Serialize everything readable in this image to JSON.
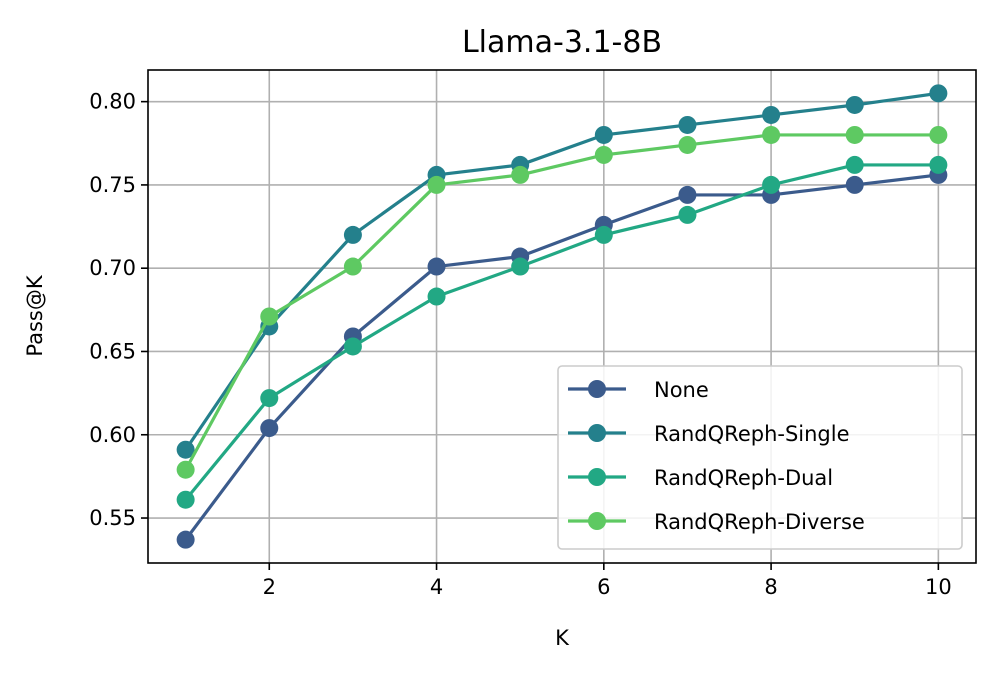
{
  "chart_data": {
    "type": "line",
    "title": "Llama-3.1-8B",
    "xlabel": "K",
    "ylabel": "Pass@K",
    "x": [
      1,
      2,
      3,
      4,
      5,
      6,
      7,
      8,
      9,
      10
    ],
    "xlim": [
      0.55,
      10.45
    ],
    "ylim": [
      0.523,
      0.819
    ],
    "xticks": [
      2,
      4,
      6,
      8,
      10
    ],
    "yticks": [
      0.55,
      0.6,
      0.65,
      0.7,
      0.75,
      0.8
    ],
    "ytick_labels": [
      "0.55",
      "0.60",
      "0.65",
      "0.70",
      "0.75",
      "0.80"
    ],
    "grid": true,
    "legend_position": "lower-right",
    "series": [
      {
        "name": "None",
        "color": "#3b5b8c",
        "values": [
          0.537,
          0.604,
          0.659,
          0.701,
          0.707,
          0.726,
          0.744,
          0.744,
          0.75,
          0.756
        ]
      },
      {
        "name": "RandQReph-Single",
        "color": "#24808c",
        "values": [
          0.591,
          0.665,
          0.72,
          0.756,
          0.762,
          0.78,
          0.786,
          0.792,
          0.798,
          0.805
        ]
      },
      {
        "name": "RandQReph-Dual",
        "color": "#22a884",
        "values": [
          0.561,
          0.622,
          0.653,
          0.683,
          0.701,
          0.72,
          0.732,
          0.75,
          0.762,
          0.762
        ]
      },
      {
        "name": "RandQReph-Diverse",
        "color": "#5ec962",
        "values": [
          0.579,
          0.671,
          0.701,
          0.75,
          0.756,
          0.768,
          0.774,
          0.78,
          0.78,
          0.78
        ]
      }
    ]
  }
}
